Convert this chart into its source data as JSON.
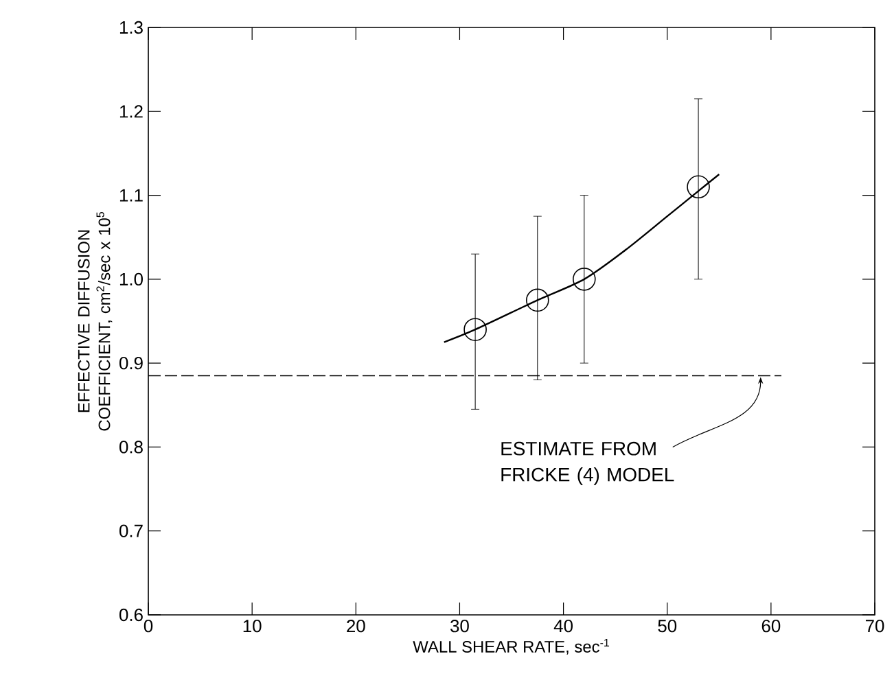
{
  "chart_data": {
    "type": "scatter",
    "xlabel": "WALL SHEAR RATE, sec$^{-1}$",
    "ylabel": "EFFECTIVE DIFFUSION COEFFICIENT, cm$^{2}$/sec x 10$^{5}$",
    "series": [
      {
        "color": "#000000",
        "marker": "circle",
        "x": [
          31.5,
          37.5,
          42,
          53
        ],
        "values": [
          0.94,
          0.975,
          1.0,
          1.11
        ],
        "errors": [
          [
            0.845,
            1.03
          ],
          [
            0.88,
            1.075
          ],
          [
            0.9,
            1.1
          ],
          [
            1.0,
            1.215
          ]
        ]
      },
      {
        "type": "line",
        "color": "#000000",
        "marker": "none",
        "line_style": "solid",
        "x": [
          28.5,
          31.5,
          37.5,
          42,
          46,
          50,
          53,
          55
        ],
        "values": [
          0.925,
          0.94,
          0.975,
          1.0,
          1.035,
          1.075,
          1.105,
          1.125
        ]
      },
      {
        "type": "line",
        "color": "#000000",
        "marker": "none",
        "line_style": "dashed",
        "x": [
          0,
          61
        ],
        "values": [
          0.885,
          0.885
        ]
      }
    ],
    "annotations": [
      {
        "text": "ESTIMATE FROM FRICKE (4) MODEL",
        "x": 59,
        "y": 0.885
      }
    ],
    "xlim": [
      0,
      70
    ],
    "ylim": [
      0.6,
      1.3
    ],
    "xticks": [
      0,
      10,
      20,
      30,
      40,
      50,
      60,
      70
    ],
    "yticks": [
      0.6,
      0.7,
      0.8,
      0.9,
      {
        "value": 1.0,
        "label": "1.0"
      },
      1.1,
      1.2,
      1.3
    ],
    "grid": false
  }
}
